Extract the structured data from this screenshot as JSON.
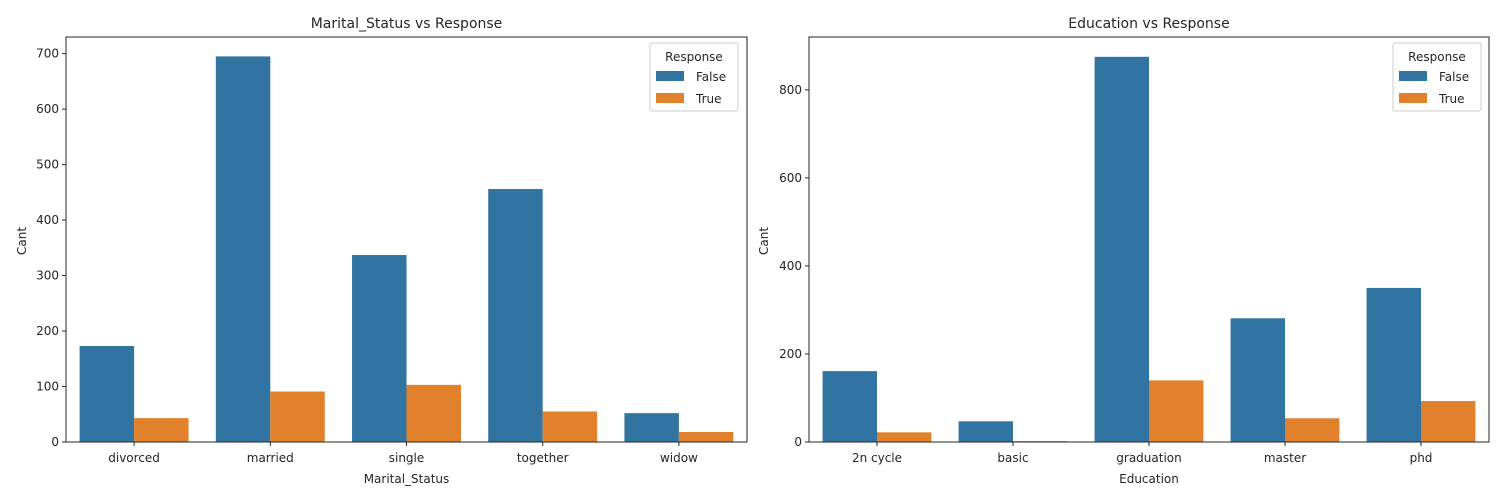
{
  "chart_data": [
    {
      "type": "bar",
      "title": "Marital_Status vs Response",
      "xlabel": "Marital_Status",
      "ylabel": "Cant",
      "categories": [
        "divorced",
        "married",
        "single",
        "together",
        "widow"
      ],
      "ylim": [
        0,
        730
      ],
      "yticks": [
        0,
        100,
        200,
        300,
        400,
        500,
        600,
        700
      ],
      "legend": {
        "title": "Response",
        "position": "top-right"
      },
      "series": [
        {
          "name": "False",
          "color": "#3274a1",
          "values": [
            173,
            695,
            337,
            456,
            52
          ]
        },
        {
          "name": "True",
          "color": "#e1812c",
          "values": [
            43,
            91,
            103,
            55,
            18
          ]
        }
      ]
    },
    {
      "type": "bar",
      "title": "Education vs Response",
      "xlabel": "Education",
      "ylabel": "Cant",
      "categories": [
        "2n cycle",
        "basic",
        "graduation",
        "master",
        "phd"
      ],
      "ylim": [
        0,
        920
      ],
      "yticks": [
        0,
        200,
        400,
        600,
        800
      ],
      "legend": {
        "title": "Response",
        "position": "top-right"
      },
      "series": [
        {
          "name": "False",
          "color": "#3274a1",
          "values": [
            161,
            47,
            875,
            281,
            350
          ]
        },
        {
          "name": "True",
          "color": "#e1812c",
          "values": [
            22,
            2,
            140,
            54,
            93
          ]
        }
      ]
    }
  ]
}
